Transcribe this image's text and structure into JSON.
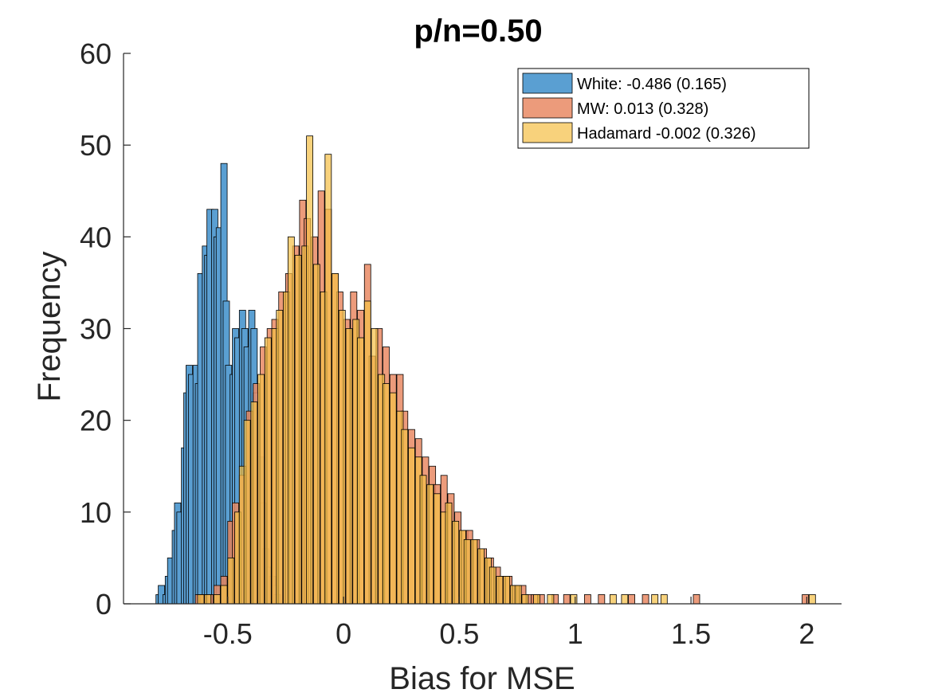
{
  "chart_data": {
    "type": "histogram",
    "title": "p/n=0.50",
    "xlabel": "Bias for MSE",
    "ylabel": "Frequency",
    "xlim": [
      -0.95,
      2.15
    ],
    "ylim": [
      0,
      60
    ],
    "xticks": [
      -0.5,
      0,
      0.5,
      1,
      1.5,
      2
    ],
    "xtick_labels": [
      "-0.5",
      "0",
      "0.5",
      "1",
      "1.5",
      "2"
    ],
    "yticks": [
      0,
      10,
      20,
      30,
      40,
      50,
      60
    ],
    "ytick_labels": [
      "0",
      "10",
      "20",
      "30",
      "40",
      "50",
      "60"
    ],
    "legend_position": "top-right",
    "series": [
      {
        "name": "White",
        "legend_label": "White: -0.486 (0.165)",
        "color": "#5a9fd2",
        "bins": [
          [
            -0.81,
            1
          ],
          [
            -0.8,
            2
          ],
          [
            -0.78,
            1
          ],
          [
            -0.77,
            3
          ],
          [
            -0.76,
            5
          ],
          [
            -0.74,
            8
          ],
          [
            -0.73,
            11
          ],
          [
            -0.72,
            10
          ],
          [
            -0.7,
            17
          ],
          [
            -0.69,
            23
          ],
          [
            -0.68,
            26
          ],
          [
            -0.67,
            25
          ],
          [
            -0.65,
            26
          ],
          [
            -0.64,
            24
          ],
          [
            -0.63,
            36
          ],
          [
            -0.61,
            39
          ],
          [
            -0.6,
            38
          ],
          [
            -0.59,
            43
          ],
          [
            -0.57,
            43
          ],
          [
            -0.56,
            40
          ],
          [
            -0.55,
            41
          ],
          [
            -0.53,
            48
          ],
          [
            -0.52,
            33
          ],
          [
            -0.51,
            26
          ],
          [
            -0.49,
            25
          ],
          [
            -0.48,
            30
          ],
          [
            -0.47,
            29
          ],
          [
            -0.45,
            32
          ],
          [
            -0.44,
            30
          ],
          [
            -0.43,
            28
          ],
          [
            -0.41,
            32
          ],
          [
            -0.4,
            30
          ],
          [
            -0.39,
            23
          ],
          [
            -0.37,
            16
          ],
          [
            -0.36,
            11
          ],
          [
            -0.35,
            6
          ],
          [
            -0.33,
            4
          ],
          [
            -0.32,
            3
          ],
          [
            -0.31,
            2
          ],
          [
            -0.3,
            1
          ]
        ]
      },
      {
        "name": "MW",
        "legend_label": "MW: 0.013 (0.328)",
        "color": "#e98a64",
        "bins": [
          [
            -0.64,
            1
          ],
          [
            -0.62,
            1
          ],
          [
            -0.59,
            1
          ],
          [
            -0.56,
            2
          ],
          [
            -0.53,
            3
          ],
          [
            -0.5,
            9
          ],
          [
            -0.48,
            11
          ],
          [
            -0.45,
            14
          ],
          [
            -0.42,
            21
          ],
          [
            -0.39,
            24
          ],
          [
            -0.36,
            28
          ],
          [
            -0.33,
            30
          ],
          [
            -0.31,
            31
          ],
          [
            -0.28,
            34
          ],
          [
            -0.25,
            36
          ],
          [
            -0.22,
            39
          ],
          [
            -0.19,
            44
          ],
          [
            -0.17,
            42
          ],
          [
            -0.14,
            40
          ],
          [
            -0.11,
            45
          ],
          [
            -0.08,
            43
          ],
          [
            -0.05,
            36
          ],
          [
            -0.03,
            34
          ],
          [
            0.0,
            31
          ],
          [
            0.03,
            34
          ],
          [
            0.06,
            32
          ],
          [
            0.09,
            37
          ],
          [
            0.11,
            27
          ],
          [
            0.14,
            30
          ],
          [
            0.17,
            28
          ],
          [
            0.2,
            25
          ],
          [
            0.23,
            25
          ],
          [
            0.25,
            21
          ],
          [
            0.28,
            19
          ],
          [
            0.31,
            18
          ],
          [
            0.34,
            16
          ],
          [
            0.37,
            15
          ],
          [
            0.39,
            13
          ],
          [
            0.42,
            14
          ],
          [
            0.45,
            12
          ],
          [
            0.48,
            10
          ],
          [
            0.51,
            8
          ],
          [
            0.53,
            8
          ],
          [
            0.56,
            7
          ],
          [
            0.59,
            6
          ],
          [
            0.62,
            5
          ],
          [
            0.65,
            4
          ],
          [
            0.67,
            3
          ],
          [
            0.7,
            3
          ],
          [
            0.73,
            2
          ],
          [
            0.76,
            2
          ],
          [
            0.79,
            1
          ],
          [
            0.81,
            1
          ],
          [
            0.84,
            1
          ],
          [
            0.9,
            1
          ],
          [
            0.95,
            1
          ],
          [
            1.04,
            1
          ],
          [
            1.1,
            1
          ],
          [
            1.23,
            1
          ],
          [
            1.29,
            1
          ],
          [
            1.51,
            1
          ],
          [
            1.98,
            1
          ]
        ]
      },
      {
        "name": "Hadamard",
        "legend_label": "Hadamard -0.002 (0.326)",
        "color": "#f5c04a",
        "bins": [
          [
            -0.63,
            1
          ],
          [
            -0.6,
            1
          ],
          [
            -0.56,
            1
          ],
          [
            -0.53,
            2
          ],
          [
            -0.5,
            5
          ],
          [
            -0.47,
            10
          ],
          [
            -0.45,
            15
          ],
          [
            -0.43,
            20
          ],
          [
            -0.4,
            22
          ],
          [
            -0.37,
            25
          ],
          [
            -0.34,
            29
          ],
          [
            -0.31,
            30
          ],
          [
            -0.29,
            32
          ],
          [
            -0.26,
            34
          ],
          [
            -0.24,
            40
          ],
          [
            -0.21,
            38
          ],
          [
            -0.18,
            39
          ],
          [
            -0.16,
            51
          ],
          [
            -0.13,
            37
          ],
          [
            -0.1,
            34
          ],
          [
            -0.08,
            49
          ],
          [
            -0.05,
            36
          ],
          [
            -0.02,
            32
          ],
          [
            0.01,
            30
          ],
          [
            0.04,
            31
          ],
          [
            0.06,
            29
          ],
          [
            0.09,
            33
          ],
          [
            0.12,
            30
          ],
          [
            0.15,
            25
          ],
          [
            0.17,
            24
          ],
          [
            0.2,
            23
          ],
          [
            0.23,
            21
          ],
          [
            0.25,
            19
          ],
          [
            0.28,
            17
          ],
          [
            0.31,
            16
          ],
          [
            0.33,
            14
          ],
          [
            0.36,
            13
          ],
          [
            0.39,
            12
          ],
          [
            0.42,
            10
          ],
          [
            0.44,
            11
          ],
          [
            0.47,
            9
          ],
          [
            0.5,
            8
          ],
          [
            0.52,
            7
          ],
          [
            0.55,
            7
          ],
          [
            0.58,
            6
          ],
          [
            0.61,
            5
          ],
          [
            0.63,
            4
          ],
          [
            0.66,
            3
          ],
          [
            0.69,
            3
          ],
          [
            0.72,
            2
          ],
          [
            0.74,
            2
          ],
          [
            0.77,
            1
          ],
          [
            0.82,
            1
          ],
          [
            0.88,
            1
          ],
          [
            0.98,
            1
          ],
          [
            1.15,
            1
          ],
          [
            1.2,
            1
          ],
          [
            1.33,
            1
          ],
          [
            1.37,
            1
          ],
          [
            2.01,
            1
          ]
        ]
      }
    ]
  }
}
